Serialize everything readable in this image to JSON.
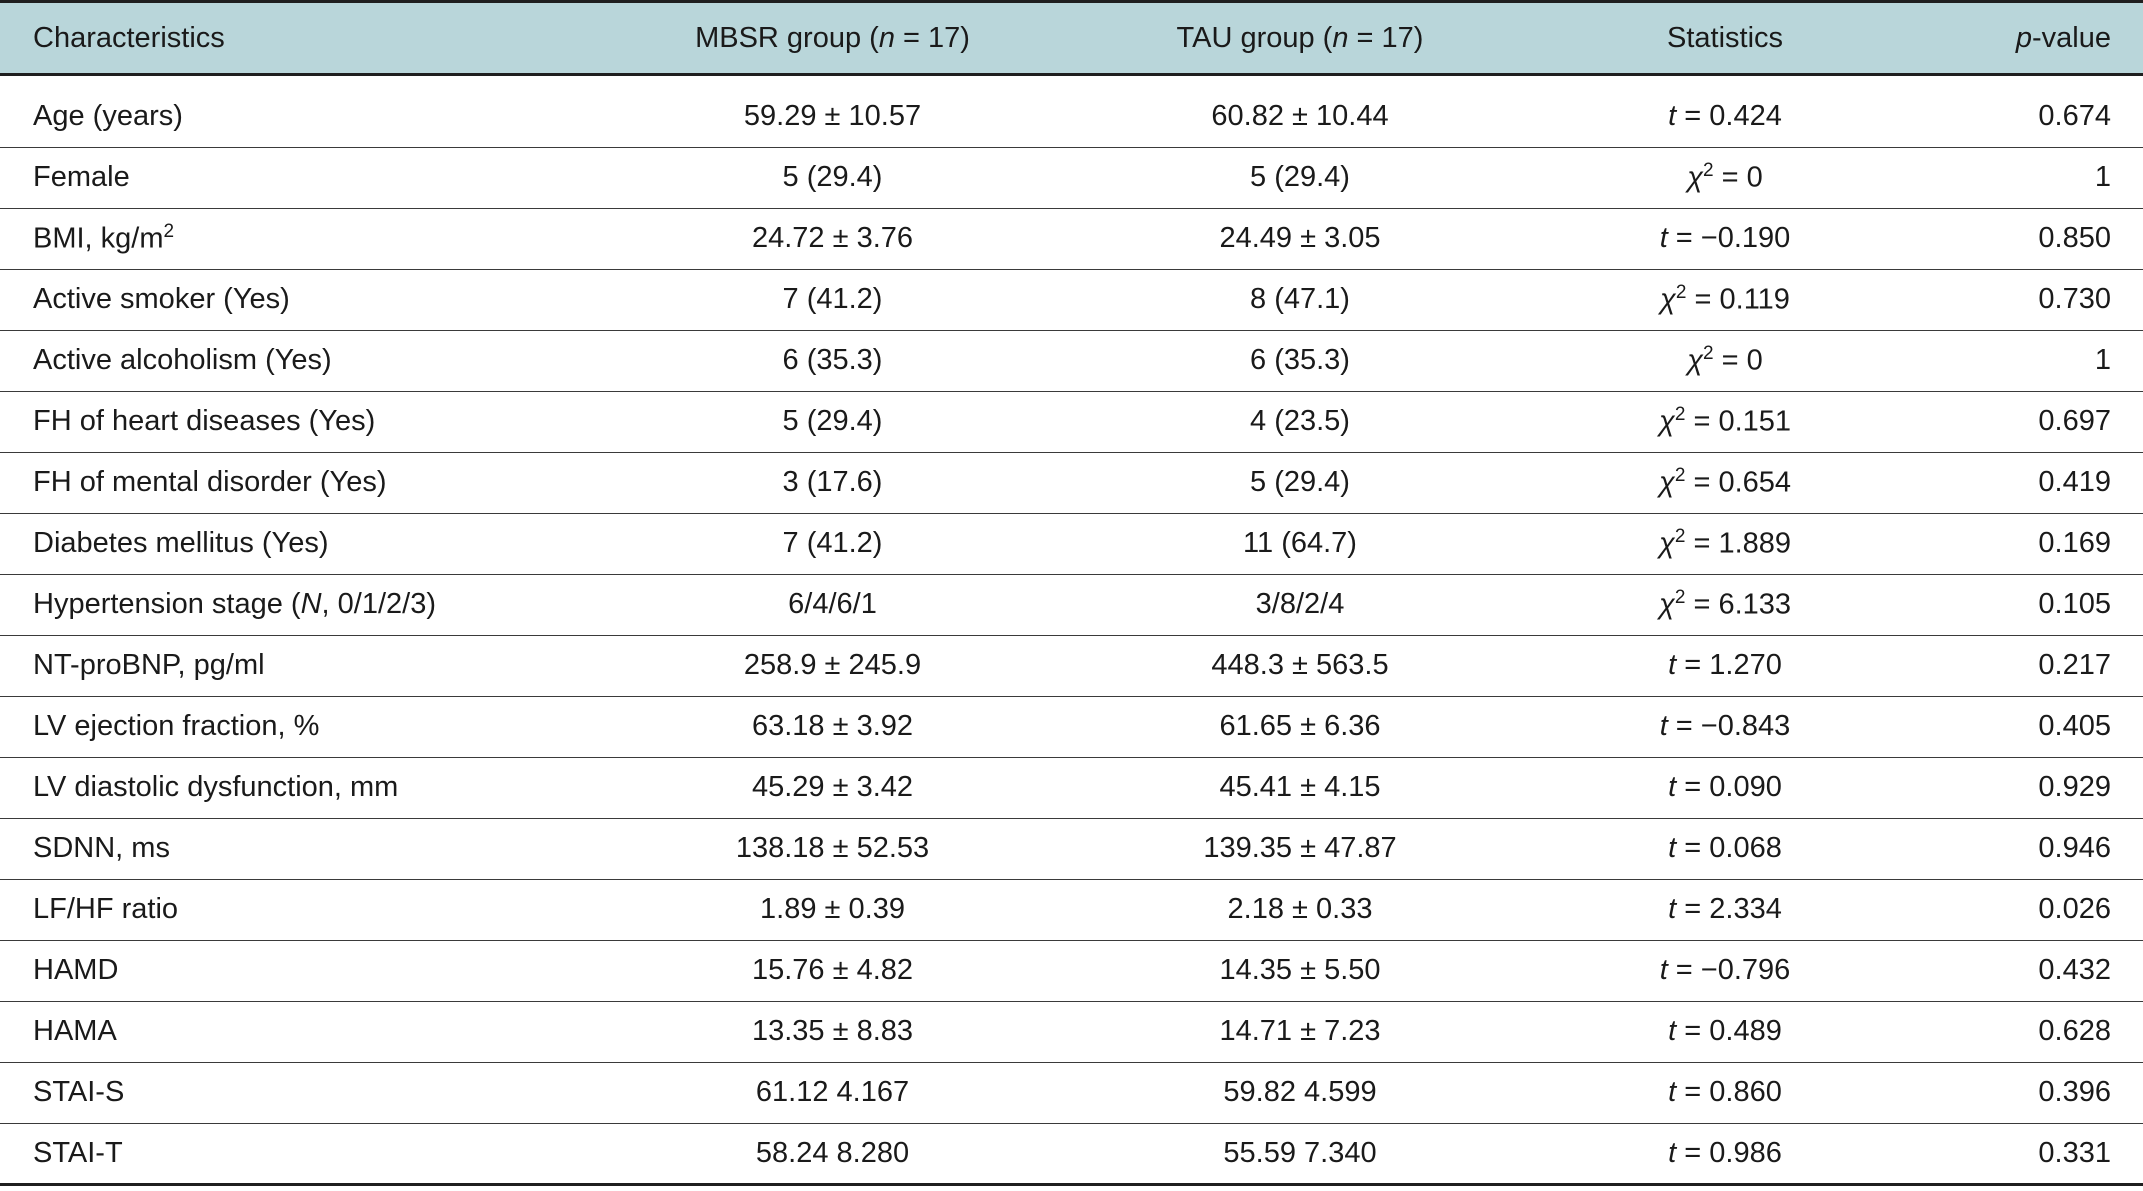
{
  "table": {
    "headers": {
      "characteristics": "Characteristics",
      "mbsr_prefix": "MBSR group (",
      "mbsr_n": "n",
      "mbsr_suffix": " = 17)",
      "tau_prefix": "TAU group (",
      "tau_n": "n",
      "tau_suffix": " = 17)",
      "statistics": "Statistics",
      "pvalue_p": "p",
      "pvalue_suffix": "-value"
    },
    "rows": [
      {
        "label": "Age (years)",
        "label_sup": "",
        "mbsr": "59.29 ± 10.57",
        "tau": "60.82 ± 10.44",
        "stat_sym": "t",
        "stat_sup": "",
        "stat_val": " = 0.424",
        "p": "0.674"
      },
      {
        "label": "Female",
        "label_sup": "",
        "mbsr": "5 (29.4)",
        "tau": "5 (29.4)",
        "stat_sym": "χ",
        "stat_sup": "2",
        "stat_val": " = 0",
        "p": "1"
      },
      {
        "label": "BMI, kg/m",
        "label_sup": "2",
        "mbsr": "24.72 ± 3.76",
        "tau": "24.49 ± 3.05",
        "stat_sym": "t",
        "stat_sup": "",
        "stat_val": " = −0.190",
        "p": "0.850"
      },
      {
        "label": "Active smoker (Yes)",
        "label_sup": "",
        "mbsr": "7 (41.2)",
        "tau": "8 (47.1)",
        "stat_sym": "χ",
        "stat_sup": "2",
        "stat_val": " = 0.119",
        "p": "0.730"
      },
      {
        "label": "Active alcoholism (Yes)",
        "label_sup": "",
        "mbsr": "6 (35.3)",
        "tau": "6 (35.3)",
        "stat_sym": "χ",
        "stat_sup": "2",
        "stat_val": " = 0",
        "p": "1"
      },
      {
        "label": "FH of heart diseases (Yes)",
        "label_sup": "",
        "mbsr": "5 (29.4)",
        "tau": "4 (23.5)",
        "stat_sym": "χ",
        "stat_sup": "2",
        "stat_val": " = 0.151",
        "p": "0.697"
      },
      {
        "label": "FH of mental disorder (Yes)",
        "label_sup": "",
        "mbsr": "3 (17.6)",
        "tau": "5 (29.4)",
        "stat_sym": "χ",
        "stat_sup": "2",
        "stat_val": " = 0.654",
        "p": "0.419"
      },
      {
        "label": "Diabetes mellitus (Yes)",
        "label_sup": "",
        "mbsr": "7 (41.2)",
        "tau": "11 (64.7)",
        "stat_sym": "χ",
        "stat_sup": "2",
        "stat_val": " = 1.889",
        "p": "0.169"
      },
      {
        "label": "Hypertension stage (",
        "label_italic": "N",
        "label_tail": ", 0/1/2/3)",
        "label_sup": "",
        "mbsr": "6/4/6/1",
        "tau": "3/8/2/4",
        "stat_sym": "χ",
        "stat_sup": "2",
        "stat_val": " = 6.133",
        "p": "0.105"
      },
      {
        "label": "NT-proBNP, pg/ml",
        "label_sup": "",
        "mbsr": "258.9 ± 245.9",
        "tau": "448.3 ± 563.5",
        "stat_sym": "t",
        "stat_sup": "",
        "stat_val": " = 1.270",
        "p": "0.217"
      },
      {
        "label": "LV ejection fraction, %",
        "label_sup": "",
        "mbsr": "63.18 ± 3.92",
        "tau": "61.65 ± 6.36",
        "stat_sym": "t",
        "stat_sup": "",
        "stat_val": " = −0.843",
        "p": "0.405"
      },
      {
        "label": "LV diastolic dysfunction, mm",
        "label_sup": "",
        "mbsr": "45.29 ± 3.42",
        "tau": "45.41 ± 4.15",
        "stat_sym": "t",
        "stat_sup": "",
        "stat_val": " = 0.090",
        "p": "0.929"
      },
      {
        "label": "SDNN, ms",
        "label_sup": "",
        "mbsr": "138.18 ± 52.53",
        "tau": "139.35 ± 47.87",
        "stat_sym": "t",
        "stat_sup": "",
        "stat_val": " = 0.068",
        "p": "0.946"
      },
      {
        "label": "LF/HF ratio",
        "label_sup": "",
        "mbsr": "1.89 ± 0.39",
        "tau": "2.18 ± 0.33",
        "stat_sym": "t",
        "stat_sup": "",
        "stat_val": " = 2.334",
        "p": "0.026"
      },
      {
        "label": "HAMD",
        "label_sup": "",
        "mbsr": "15.76 ± 4.82",
        "tau": "14.35 ± 5.50",
        "stat_sym": "t",
        "stat_sup": "",
        "stat_val": " = −0.796",
        "p": "0.432"
      },
      {
        "label": "HAMA",
        "label_sup": "",
        "mbsr": "13.35 ± 8.83",
        "tau": "14.71 ± 7.23",
        "stat_sym": "t",
        "stat_sup": "",
        "stat_val": " = 0.489",
        "p": "0.628"
      },
      {
        "label": "STAI-S",
        "label_sup": "",
        "mbsr": "61.12 4.167",
        "tau": "59.82 4.599",
        "stat_sym": "t",
        "stat_sup": "",
        "stat_val": " = 0.860",
        "p": "0.396"
      },
      {
        "label": "STAI-T",
        "label_sup": "",
        "mbsr": "58.24 8.280",
        "tau": "55.59 7.340",
        "stat_sym": "t",
        "stat_sup": "",
        "stat_val": " = 0.986",
        "p": "0.331"
      }
    ]
  }
}
